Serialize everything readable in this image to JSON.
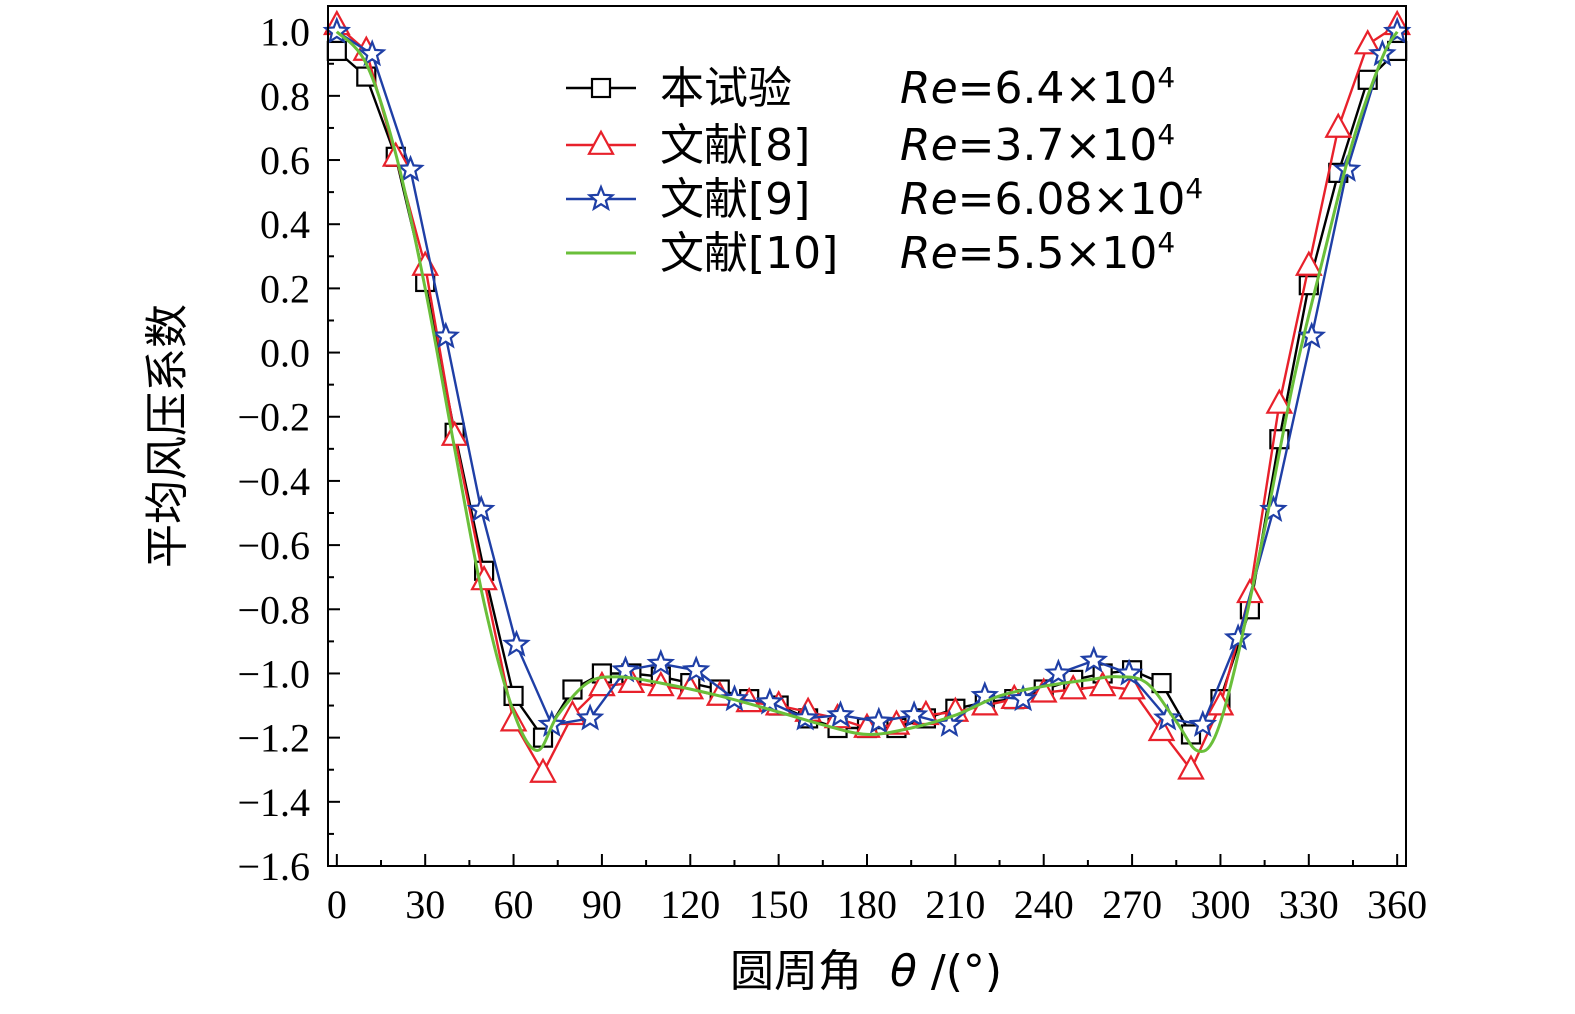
{
  "chart_data": {
    "type": "line",
    "xlabel_cn": "圆周角",
    "xlabel_sym": "θ",
    "xlabel_unit": "/(°)",
    "ylabel": "平均风压系数",
    "xlim": [
      -3,
      363
    ],
    "ylim": [
      -1.6,
      1.08
    ],
    "xticks": [
      0,
      30,
      60,
      90,
      120,
      150,
      180,
      210,
      240,
      270,
      300,
      330,
      360
    ],
    "yticks": [
      1.0,
      0.8,
      0.6,
      0.4,
      0.2,
      0.0,
      -0.2,
      -0.4,
      -0.6,
      -0.8,
      -1.0,
      -1.2,
      -1.4,
      -1.6
    ],
    "ytick_labels": [
      "1.0",
      "0.8",
      "0.6",
      "0.4",
      "0.2",
      "0.0",
      "−0.2",
      "−0.4",
      "−0.6",
      "−0.8",
      "−1.0",
      "−1.2",
      "−1.4",
      "−1.6"
    ],
    "legend_position": "top-center",
    "series": [
      {
        "name": "本试验",
        "re_label": "Re",
        "re_value": "=6.4×10",
        "re_exp": "4",
        "color": "#000000",
        "marker": "square",
        "x": [
          0,
          10,
          20,
          30,
          40,
          50,
          60,
          70,
          80,
          90,
          100,
          110,
          120,
          130,
          140,
          150,
          160,
          170,
          180,
          190,
          200,
          210,
          220,
          230,
          240,
          250,
          260,
          270,
          280,
          290,
          300,
          310,
          320,
          330,
          340,
          350,
          360
        ],
        "y": [
          0.94,
          0.86,
          0.61,
          0.22,
          -0.25,
          -0.68,
          -1.07,
          -1.2,
          -1.05,
          -1.0,
          -1.0,
          -1.01,
          -1.03,
          -1.05,
          -1.08,
          -1.1,
          -1.14,
          -1.17,
          -1.17,
          -1.17,
          -1.14,
          -1.11,
          -1.09,
          -1.08,
          -1.05,
          -1.02,
          -1.0,
          -0.99,
          -1.03,
          -1.19,
          -1.08,
          -0.8,
          -0.27,
          0.21,
          0.56,
          0.85,
          0.94
        ]
      },
      {
        "name": "文献[8]",
        "re_label": "Re",
        "re_value": "=3.7×10",
        "re_exp": "4",
        "color": "#e8212b",
        "marker": "triangle",
        "x": [
          0,
          10,
          20,
          30,
          40,
          50,
          60,
          70,
          80,
          90,
          100,
          110,
          120,
          130,
          140,
          150,
          160,
          170,
          180,
          190,
          200,
          210,
          220,
          230,
          240,
          250,
          260,
          270,
          280,
          290,
          300,
          310,
          320,
          330,
          340,
          350,
          360
        ],
        "y": [
          1.02,
          0.94,
          0.61,
          0.27,
          -0.26,
          -0.71,
          -1.15,
          -1.31,
          -1.13,
          -1.04,
          -1.03,
          -1.04,
          -1.05,
          -1.07,
          -1.09,
          -1.1,
          -1.12,
          -1.14,
          -1.17,
          -1.16,
          -1.13,
          -1.12,
          -1.1,
          -1.08,
          -1.06,
          -1.05,
          -1.04,
          -1.05,
          -1.18,
          -1.3,
          -1.1,
          -0.75,
          -0.16,
          0.27,
          0.7,
          0.96,
          1.02
        ]
      },
      {
        "name": "文献[9]",
        "re_label": "Re",
        "re_value": "=6.08×10",
        "re_exp": "4",
        "color": "#1f3fa6",
        "marker": "star",
        "x": [
          0,
          12,
          25,
          37,
          49,
          61,
          73,
          86,
          98,
          110,
          122,
          135,
          147,
          159,
          171,
          184,
          196,
          208,
          220,
          233,
          245,
          257,
          269,
          282,
          294,
          306,
          318,
          331,
          343,
          355,
          360
        ],
        "y": [
          1.0,
          0.93,
          0.57,
          0.05,
          -0.49,
          -0.91,
          -1.16,
          -1.14,
          -0.99,
          -0.97,
          -0.99,
          -1.08,
          -1.09,
          -1.14,
          -1.13,
          -1.15,
          -1.13,
          -1.16,
          -1.07,
          -1.08,
          -1.0,
          -0.96,
          -1.0,
          -1.14,
          -1.16,
          -0.89,
          -0.49,
          0.05,
          0.57,
          0.93,
          1.0
        ]
      },
      {
        "name": "文献[10]",
        "re_label": "Re",
        "re_value": "=5.5×10",
        "re_exp": "4",
        "color": "#6abf3a",
        "marker": "none",
        "x": [
          0,
          10,
          20,
          30,
          40,
          50,
          60,
          68,
          75,
          85,
          95,
          110,
          130,
          150,
          165,
          180,
          195,
          210,
          225,
          240,
          255,
          265,
          275,
          285,
          292,
          298,
          305,
          315,
          325,
          335,
          345,
          355,
          360
        ],
        "y": [
          1.0,
          0.9,
          0.62,
          0.2,
          -0.3,
          -0.78,
          -1.12,
          -1.24,
          -1.13,
          -1.03,
          -1.01,
          -1.03,
          -1.07,
          -1.12,
          -1.16,
          -1.19,
          -1.17,
          -1.13,
          -1.07,
          -1.04,
          -1.02,
          -1.01,
          -1.03,
          -1.15,
          -1.24,
          -1.2,
          -0.98,
          -0.55,
          -0.08,
          0.3,
          0.66,
          0.92,
          1.0
        ]
      }
    ]
  }
}
